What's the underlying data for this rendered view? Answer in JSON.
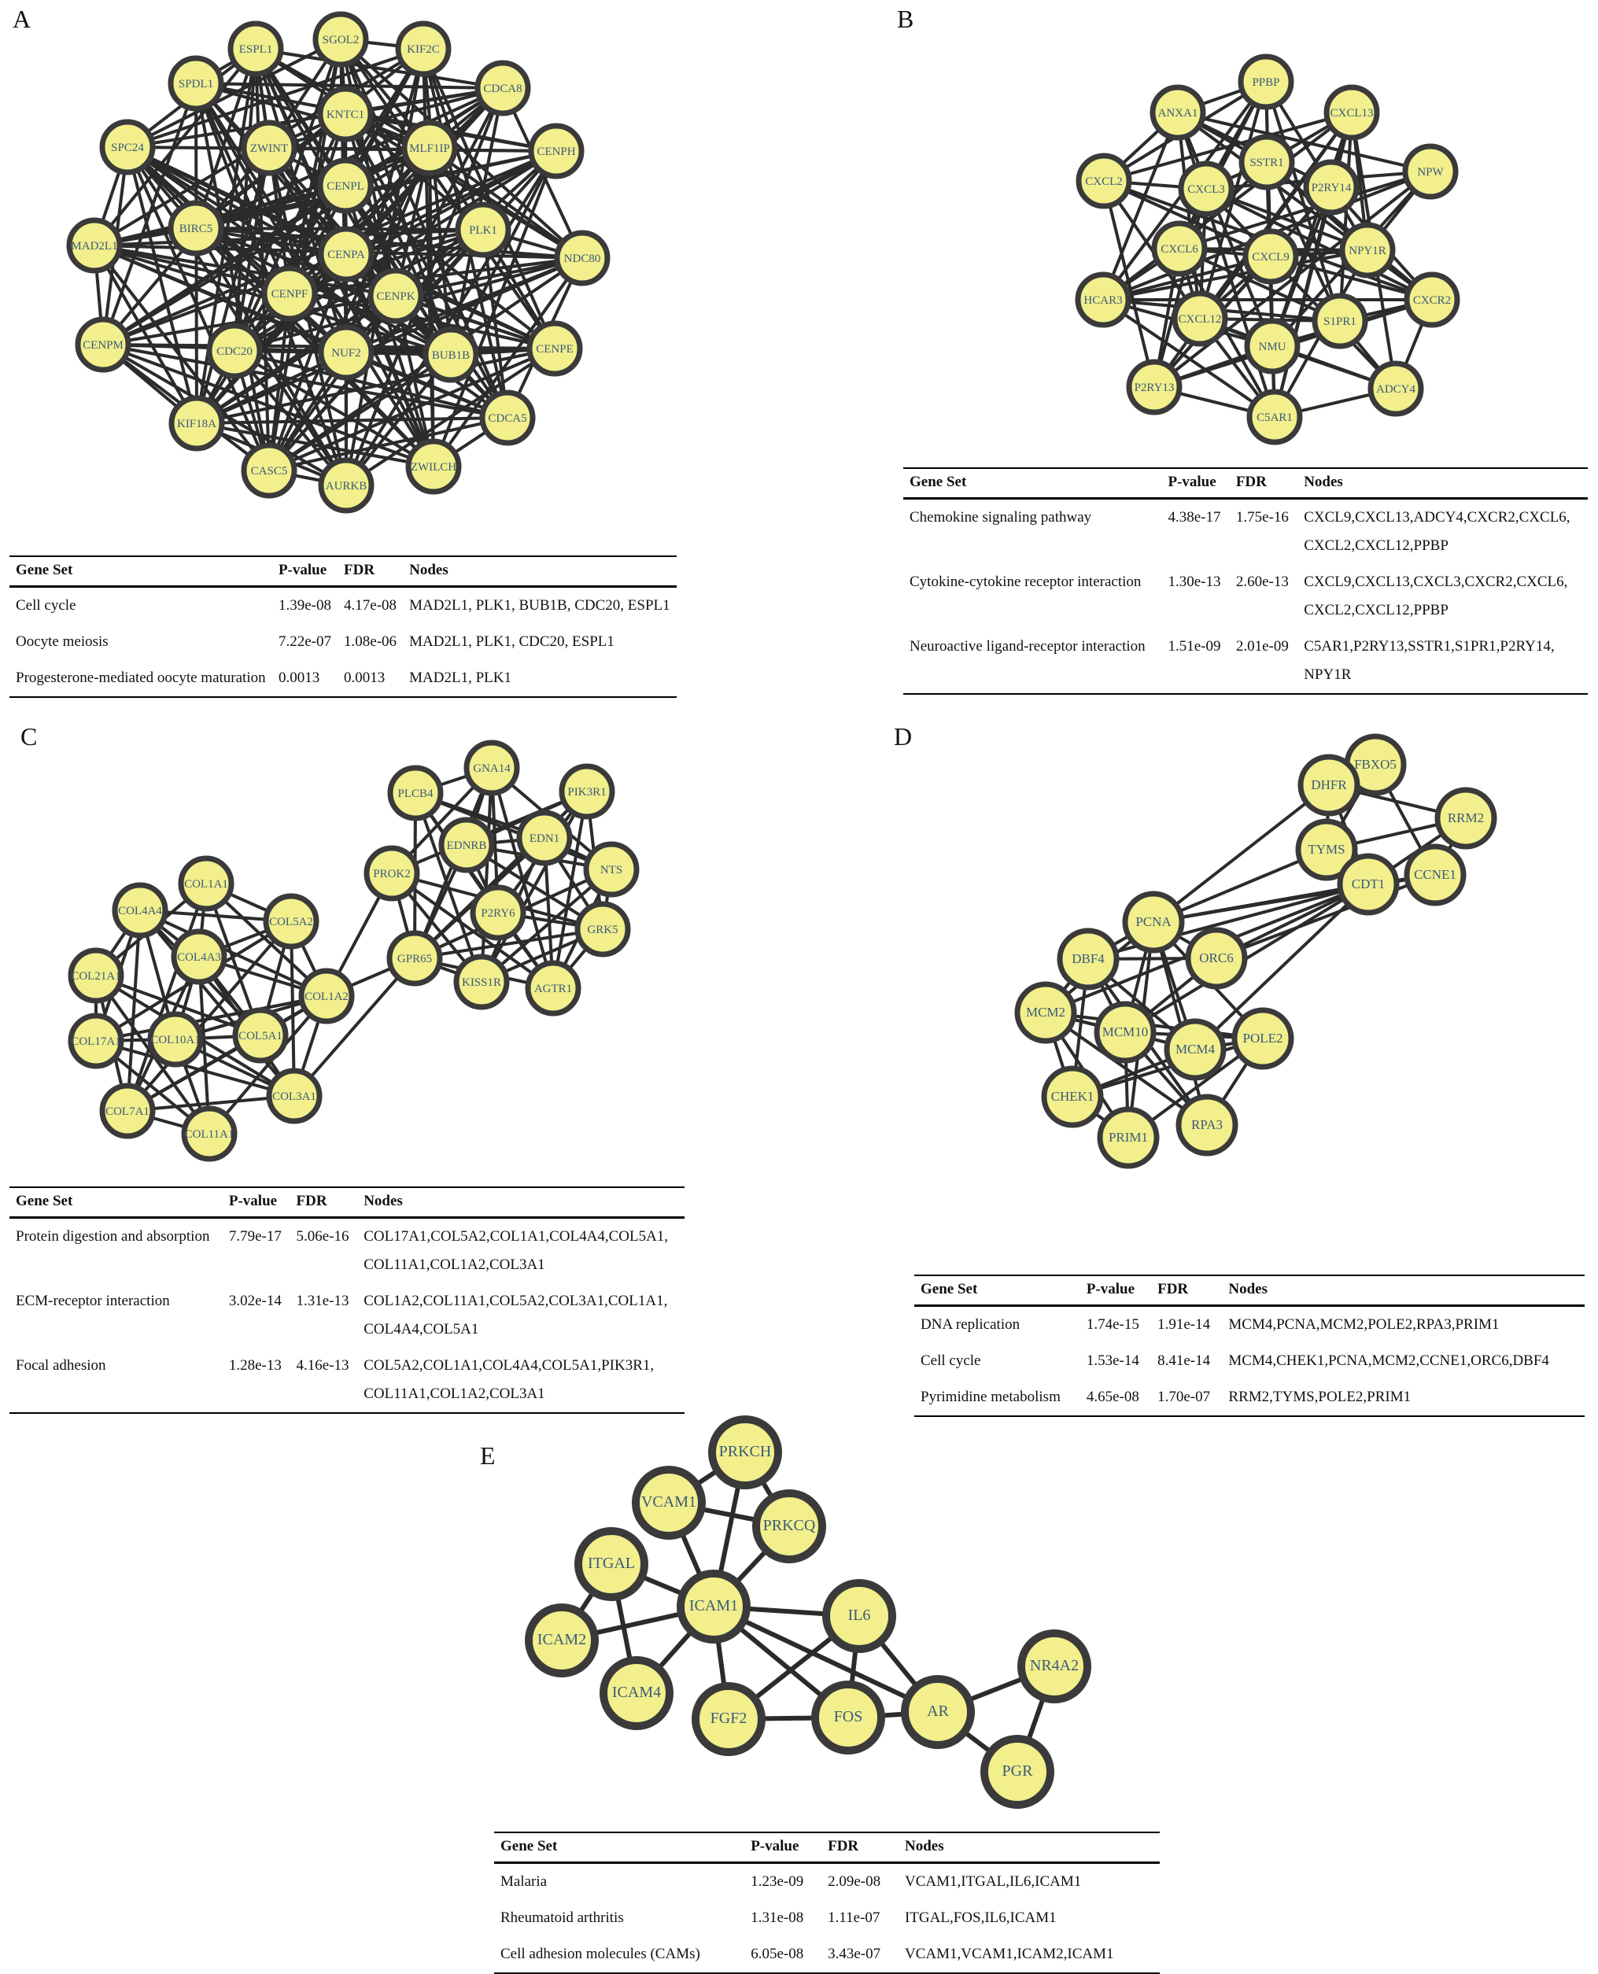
{
  "panels": [
    {
      "letter": "A",
      "node_font": 15,
      "nodes": [
        {
          "id": "ESPL1"
        },
        {
          "id": "SGOL2"
        },
        {
          "id": "KIF2C"
        },
        {
          "id": "SPDL1"
        },
        {
          "id": "CDCA8"
        },
        {
          "id": "KNTC1"
        },
        {
          "id": "ZWINT"
        },
        {
          "id": "MLF1IP"
        },
        {
          "id": "SPC24"
        },
        {
          "id": "CENPH"
        },
        {
          "id": "CENPL"
        },
        {
          "id": "BIRC5"
        },
        {
          "id": "PLK1"
        },
        {
          "id": "MAD2L1"
        },
        {
          "id": "CENPA"
        },
        {
          "id": "NDC80"
        },
        {
          "id": "CENPF"
        },
        {
          "id": "CENPK"
        },
        {
          "id": "CENPM"
        },
        {
          "id": "CDC20"
        },
        {
          "id": "NUF2"
        },
        {
          "id": "BUB1B"
        },
        {
          "id": "CENPE"
        },
        {
          "id": "KIF18A"
        },
        {
          "id": "CDCA5"
        },
        {
          "id": "CASC5"
        },
        {
          "id": "ZWILCH"
        },
        {
          "id": "AURKB"
        }
      ],
      "table": {
        "headers": [
          "Gene Set",
          "P-value",
          "FDR",
          "Nodes"
        ],
        "rows": [
          [
            "Cell cycle",
            "1.39e-08",
            "4.17e-08",
            "MAD2L1, PLK1, BUB1B, CDC20, ESPL1"
          ],
          [
            "Oocyte meiosis",
            "7.22e-07",
            "1.08e-06",
            "MAD2L1, PLK1, CDC20, ESPL1"
          ],
          [
            "Progesterone-mediated oocyte maturation",
            "0.0013",
            "0.0013",
            "MAD2L1, PLK1"
          ]
        ]
      }
    },
    {
      "letter": "B",
      "node_font": 15,
      "nodes": [
        {
          "id": "PPBP"
        },
        {
          "id": "ANXA1"
        },
        {
          "id": "CXCL13"
        },
        {
          "id": "SSTR1"
        },
        {
          "id": "CXCL2"
        },
        {
          "id": "CXCL3"
        },
        {
          "id": "P2RY14"
        },
        {
          "id": "NPW"
        },
        {
          "id": "CXCL6"
        },
        {
          "id": "CXCL9"
        },
        {
          "id": "NPY1R"
        },
        {
          "id": "HCAR3"
        },
        {
          "id": "CXCL12"
        },
        {
          "id": "S1PR1"
        },
        {
          "id": "CXCR2"
        },
        {
          "id": "NMU"
        },
        {
          "id": "P2RY13"
        },
        {
          "id": "ADCY4"
        },
        {
          "id": "C5AR1"
        }
      ],
      "table": {
        "headers": [
          "Gene Set",
          "P-value",
          "FDR",
          "Nodes"
        ],
        "rows": [
          [
            "Chemokine signaling pathway",
            "4.38e-17",
            "1.75e-16",
            "CXCL9,CXCL13,ADCY4,CXCR2,CXCL6,\nCXCL2,CXCL12,PPBP"
          ],
          [
            "Cytokine-cytokine receptor interaction",
            "1.30e-13",
            "2.60e-13",
            "CXCL9,CXCL13,CXCL3,CXCR2,CXCL6,\nCXCL2,CXCL12,PPBP"
          ],
          [
            "Neuroactive ligand-receptor interaction",
            "1.51e-09",
            "2.01e-09",
            "C5AR1,P2RY13,SSTR1,S1PR1,P2RY14,\nNPY1R"
          ]
        ]
      }
    },
    {
      "letter": "C",
      "node_font": 15,
      "nodes": [
        {
          "id": "GNA14"
        },
        {
          "id": "PLCB4"
        },
        {
          "id": "PIK3R1"
        },
        {
          "id": "EDNRB"
        },
        {
          "id": "EDN1"
        },
        {
          "id": "PROK2"
        },
        {
          "id": "NTS"
        },
        {
          "id": "COL1A1"
        },
        {
          "id": "P2RY6"
        },
        {
          "id": "COL4A4"
        },
        {
          "id": "COL5A2"
        },
        {
          "id": "GRK5"
        },
        {
          "id": "COL4A3"
        },
        {
          "id": "GPR65"
        },
        {
          "id": "KISS1R"
        },
        {
          "id": "AGTR1"
        },
        {
          "id": "COL21A1"
        },
        {
          "id": "COL1A2"
        },
        {
          "id": "COL17A1"
        },
        {
          "id": "COL10A1"
        },
        {
          "id": "COL5A1"
        },
        {
          "id": "COL3A1"
        },
        {
          "id": "COL7A1"
        },
        {
          "id": "COL11A1"
        }
      ],
      "table": {
        "headers": [
          "Gene Set",
          "P-value",
          "FDR",
          "Nodes"
        ],
        "rows": [
          [
            "Protein digestion and absorption",
            "7.79e-17",
            "5.06e-16",
            "COL17A1,COL5A2,COL1A1,COL4A4,COL5A1,\nCOL11A1,COL1A2,COL3A1"
          ],
          [
            "ECM-receptor interaction",
            "3.02e-14",
            "1.31e-13",
            "COL1A2,COL11A1,COL5A2,COL3A1,COL1A1,\nCOL4A4,COL5A1"
          ],
          [
            "Focal adhesion",
            "1.28e-13",
            "4.16e-13",
            "COL5A2,COL1A1,COL4A4,COL5A1,PIK3R1,\nCOL11A1,COL1A2,COL3A1"
          ]
        ]
      }
    },
    {
      "letter": "D",
      "node_font": 17,
      "nodes": [
        {
          "id": "FBXO5"
        },
        {
          "id": "DHFR"
        },
        {
          "id": "RRM2"
        },
        {
          "id": "TYMS"
        },
        {
          "id": "CCNE1"
        },
        {
          "id": "CDT1"
        },
        {
          "id": "PCNA"
        },
        {
          "id": "ORC6"
        },
        {
          "id": "DBF4"
        },
        {
          "id": "MCM2"
        },
        {
          "id": "MCM10"
        },
        {
          "id": "MCM4"
        },
        {
          "id": "POLE2"
        },
        {
          "id": "CHEK1"
        },
        {
          "id": "PRIM1"
        },
        {
          "id": "RPA3"
        }
      ],
      "table": {
        "headers": [
          "Gene Set",
          "P-value",
          "FDR",
          "Nodes"
        ],
        "rows": [
          [
            "DNA replication",
            "1.74e-15",
            "1.91e-14",
            "MCM4,PCNA,MCM2,POLE2,RPA3,PRIM1"
          ],
          [
            "Cell cycle",
            "1.53e-14",
            "8.41e-14",
            "MCM4,CHEK1,PCNA,MCM2,CCNE1,ORC6,DBF4"
          ],
          [
            "Pyrimidine metabolism",
            "4.65e-08",
            "1.70e-07",
            "RRM2,TYMS,POLE2,PRIM1"
          ]
        ]
      }
    },
    {
      "letter": "E",
      "node_font": 20,
      "nodes": [
        {
          "id": "PRKCH"
        },
        {
          "id": "VCAM1"
        },
        {
          "id": "PRKCQ"
        },
        {
          "id": "ITGAL"
        },
        {
          "id": "ICAM1"
        },
        {
          "id": "IL6"
        },
        {
          "id": "ICAM2"
        },
        {
          "id": "NR4A2"
        },
        {
          "id": "ICAM4"
        },
        {
          "id": "FGF2"
        },
        {
          "id": "FOS"
        },
        {
          "id": "AR"
        },
        {
          "id": "PGR"
        }
      ],
      "table": {
        "headers": [
          "Gene Set",
          "P-value",
          "FDR",
          "Nodes"
        ],
        "rows": [
          [
            "Malaria",
            "1.23e-09",
            "2.09e-08",
            "VCAM1,ITGAL,IL6,ICAM1"
          ],
          [
            "Rheumatoid arthritis",
            "1.31e-08",
            "1.11e-07",
            "ITGAL,FOS,IL6,ICAM1"
          ],
          [
            "Cell adhesion molecules (CAMs)",
            "6.05e-08",
            "3.43e-07",
            "VCAM1,VCAM1,ICAM2,ICAM1"
          ]
        ]
      }
    }
  ]
}
